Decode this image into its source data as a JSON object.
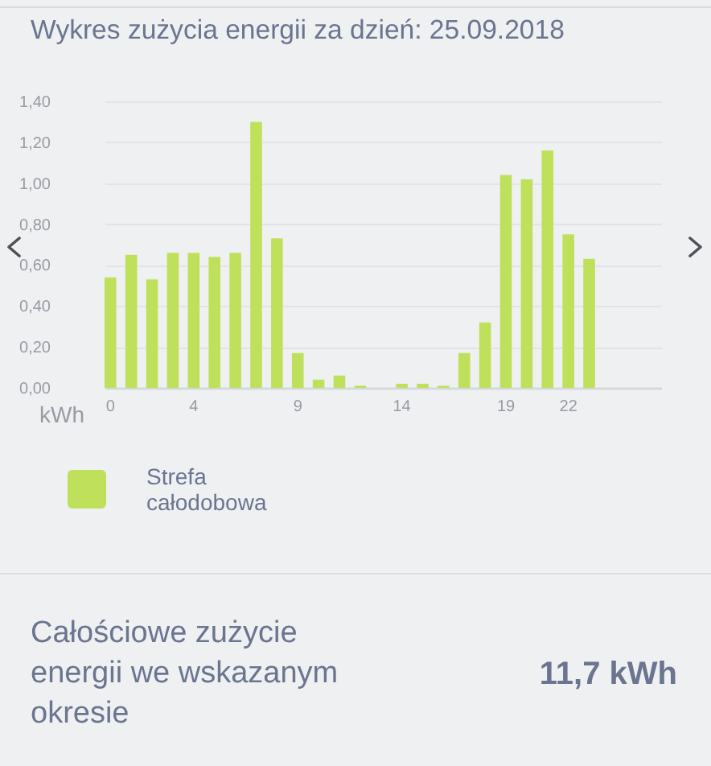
{
  "chart_data": {
    "type": "bar",
    "title": "Wykres zużycia energii za dzień: 25.09.2018",
    "ylabel": "kWh",
    "categories": [
      "0",
      null,
      null,
      null,
      "4",
      null,
      null,
      null,
      null,
      "9",
      null,
      null,
      null,
      null,
      "14",
      null,
      null,
      null,
      null,
      "19",
      null,
      null,
      "22",
      null
    ],
    "series": [
      {
        "name": "Strefa całodobowa",
        "color": "#bee05b",
        "values": [
          0.54,
          0.65,
          0.53,
          0.66,
          0.66,
          0.64,
          0.66,
          1.3,
          0.73,
          0.17,
          0.04,
          0.06,
          0.01,
          0,
          0.02,
          0.02,
          0.01,
          0.17,
          0.32,
          1.04,
          1.02,
          1.16,
          0.75,
          0.63
        ]
      }
    ],
    "ylim": [
      0,
      1.4
    ],
    "yticks": [
      {
        "value": 0,
        "label": "0,00"
      },
      {
        "value": 0.2,
        "label": "0,20"
      },
      {
        "value": 0.4,
        "label": "0,40"
      },
      {
        "value": 0.6,
        "label": "0,60"
      },
      {
        "value": 0.8,
        "label": "0,80"
      },
      {
        "value": 1.0,
        "label": "1,00"
      },
      {
        "value": 1.2,
        "label": "1,20"
      },
      {
        "value": 1.4,
        "label": "1,40"
      }
    ],
    "grid": "y",
    "legend": "bottom",
    "annotations": [
      "Całościowe zużycie energii we wskazanym okresie",
      "11,7 kWh"
    ]
  }
}
